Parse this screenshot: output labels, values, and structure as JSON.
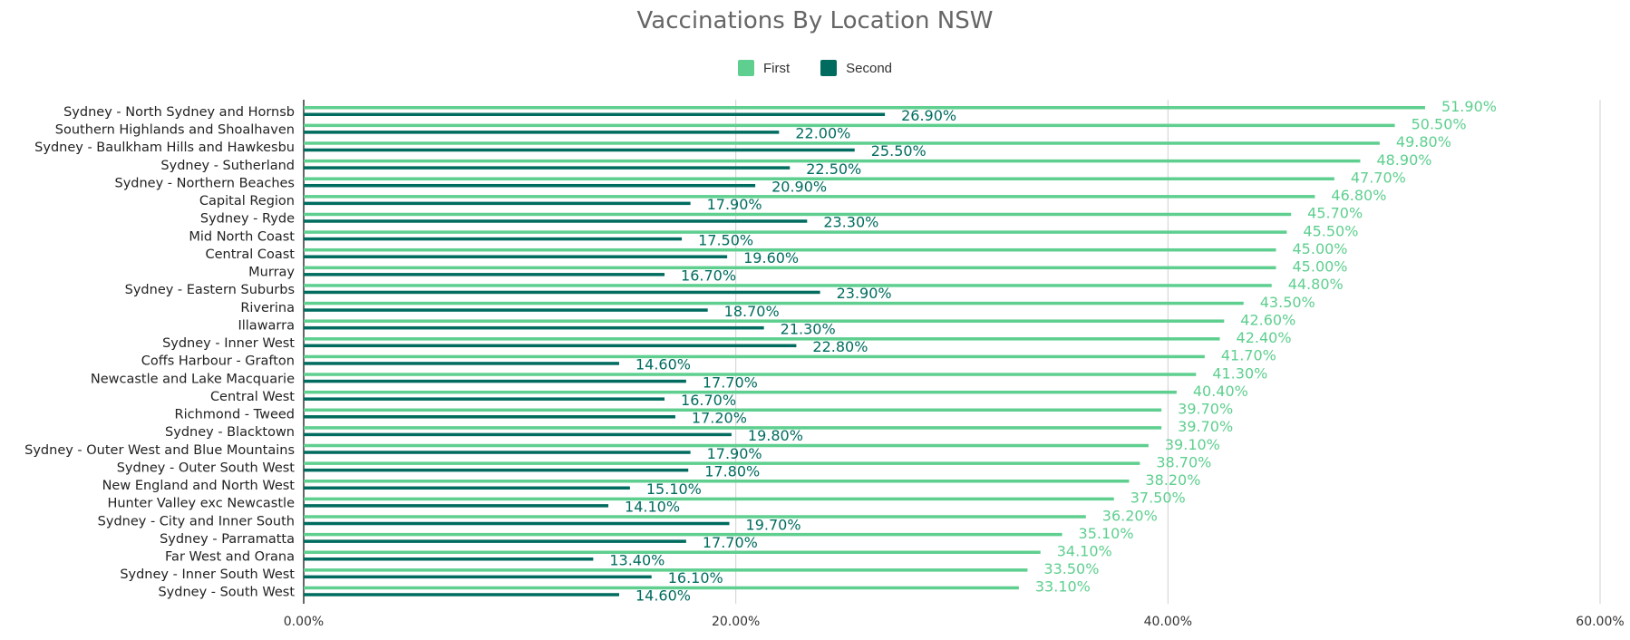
{
  "chart_data": {
    "type": "bar",
    "orientation": "horizontal",
    "title": "Vaccinations By Location NSW",
    "legend_position": "top",
    "grid": true,
    "xlim": [
      0,
      60
    ],
    "x_ticks": [
      "0.00%",
      "20.00%",
      "40.00%",
      "60.00%"
    ],
    "categories": [
      "Sydney - North Sydney and Hornsb",
      "Southern Highlands and Shoalhaven",
      "Sydney - Baulkham Hills and Hawkesbu",
      "Sydney - Sutherland",
      "Sydney - Northern Beaches",
      "Capital Region",
      "Sydney - Ryde",
      "Mid North Coast",
      "Central Coast",
      "Murray",
      "Sydney - Eastern Suburbs",
      "Riverina",
      "Illawarra",
      "Sydney - Inner West",
      "Coffs Harbour - Grafton",
      "Newcastle and Lake Macquarie",
      "Central West",
      "Richmond - Tweed",
      "Sydney - Blacktown",
      "Sydney - Outer West and Blue Mountains",
      "Sydney - Outer South West",
      "New England and North West",
      "Hunter Valley exc Newcastle",
      "Sydney - City and Inner South",
      "Sydney - Parramatta",
      "Far West and Orana",
      "Sydney - Inner South West",
      "Sydney - South West"
    ],
    "series": [
      {
        "name": "First",
        "color": "#5ecf8f",
        "values": [
          51.9,
          50.5,
          49.8,
          48.9,
          47.7,
          46.8,
          45.7,
          45.5,
          45.0,
          45.0,
          44.8,
          43.5,
          42.6,
          42.4,
          41.7,
          41.3,
          40.4,
          39.7,
          39.7,
          39.1,
          38.7,
          38.2,
          37.5,
          36.2,
          35.1,
          34.1,
          33.5,
          33.1
        ],
        "labels": [
          "51.90%",
          "50.50%",
          "49.80%",
          "48.90%",
          "47.70%",
          "46.80%",
          "45.70%",
          "45.50%",
          "45.00%",
          "45.00%",
          "44.80%",
          "43.50%",
          "42.60%",
          "42.40%",
          "41.70%",
          "41.30%",
          "40.40%",
          "39.70%",
          "39.70%",
          "39.10%",
          "38.70%",
          "38.20%",
          "37.50%",
          "36.20%",
          "35.10%",
          "34.10%",
          "33.50%",
          "33.10%"
        ]
      },
      {
        "name": "Second",
        "color": "#006c5f",
        "values": [
          26.9,
          22.0,
          25.5,
          22.5,
          20.9,
          17.9,
          23.3,
          17.5,
          19.6,
          16.7,
          23.9,
          18.7,
          21.3,
          22.8,
          14.6,
          17.7,
          16.7,
          17.2,
          19.8,
          17.9,
          17.8,
          15.1,
          14.1,
          19.7,
          17.7,
          13.4,
          16.1,
          14.6
        ],
        "labels": [
          "26.90%",
          "22.00%",
          "25.50%",
          "22.50%",
          "20.90%",
          "17.90%",
          "23.30%",
          "17.50%",
          "19.60%",
          "16.70%",
          "23.90%",
          "18.70%",
          "21.30%",
          "22.80%",
          "14.60%",
          "17.70%",
          "16.70%",
          "17.20%",
          "19.80%",
          "17.90%",
          "17.80%",
          "15.10%",
          "14.10%",
          "19.70%",
          "17.70%",
          "13.40%",
          "16.10%",
          "14.60%"
        ]
      }
    ]
  }
}
